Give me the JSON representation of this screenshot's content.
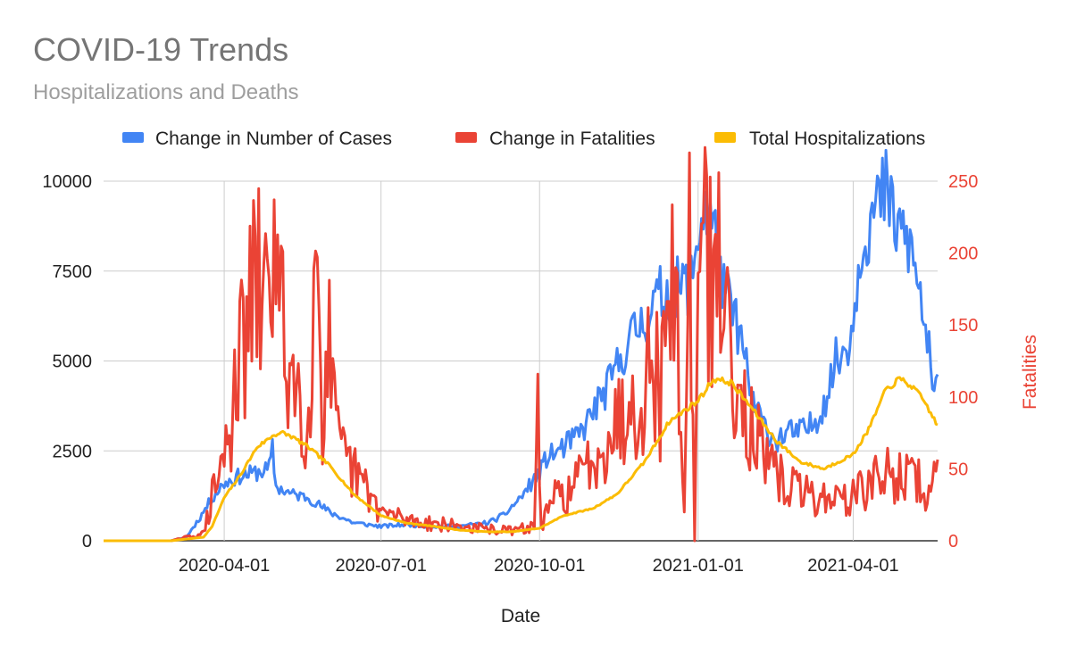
{
  "chart_data": {
    "type": "line",
    "title": "COVID-19 Trends",
    "subtitle": "Hospitalizations and Deaths",
    "xlabel": "Date",
    "ylabel": "",
    "y2label": "Fatalities",
    "x_start": "2020-01-22",
    "x_end": "2021-05-20",
    "x_ticks": [
      "2020-04-01",
      "2020-07-01",
      "2020-10-01",
      "2021-01-01",
      "2021-04-01"
    ],
    "ylim": [
      0,
      10000
    ],
    "y_ticks": [
      0,
      2500,
      5000,
      7500,
      10000
    ],
    "y2lim": [
      0,
      250
    ],
    "y2_ticks": [
      0,
      50,
      100,
      150,
      200,
      250
    ],
    "grid": true,
    "legend_position": "top",
    "colors": {
      "cases": "#4285f4",
      "fatalities": "#ea4335",
      "hospitalizations": "#fbbc04",
      "y2axis": "#ea4335"
    },
    "series": [
      {
        "name": "Change in Number of Cases",
        "axis": "left",
        "color": "#4285f4",
        "points": [
          [
            "2020-01-22",
            0
          ],
          [
            "2020-03-01",
            0
          ],
          [
            "2020-03-10",
            100
          ],
          [
            "2020-03-18",
            650
          ],
          [
            "2020-03-25",
            1200
          ],
          [
            "2020-04-01",
            1600
          ],
          [
            "2020-04-10",
            1800
          ],
          [
            "2020-04-20",
            1900
          ],
          [
            "2020-04-27",
            2000
          ],
          [
            "2020-04-29",
            2550
          ],
          [
            "2020-05-01",
            1500
          ],
          [
            "2020-05-10",
            1300
          ],
          [
            "2020-05-20",
            1200
          ],
          [
            "2020-06-01",
            800
          ],
          [
            "2020-06-15",
            500
          ],
          [
            "2020-07-01",
            400
          ],
          [
            "2020-07-15",
            450
          ],
          [
            "2020-08-01",
            400
          ],
          [
            "2020-08-15",
            400
          ],
          [
            "2020-09-01",
            500
          ],
          [
            "2020-09-10",
            700
          ],
          [
            "2020-09-20",
            1200
          ],
          [
            "2020-10-01",
            1900
          ],
          [
            "2020-10-05",
            2300
          ],
          [
            "2020-10-15",
            2600
          ],
          [
            "2020-10-25",
            3000
          ],
          [
            "2020-11-01",
            3600
          ],
          [
            "2020-11-10",
            4300
          ],
          [
            "2020-11-20",
            5400
          ],
          [
            "2020-12-01",
            6200
          ],
          [
            "2020-12-10",
            6800
          ],
          [
            "2020-12-20",
            7000
          ],
          [
            "2020-12-28",
            7200
          ],
          [
            "2021-01-01",
            8600
          ],
          [
            "2021-01-05",
            9300
          ],
          [
            "2021-01-10",
            8700
          ],
          [
            "2021-01-15",
            7000
          ],
          [
            "2021-01-20",
            6500
          ],
          [
            "2021-01-25",
            5800
          ],
          [
            "2021-02-01",
            4000
          ],
          [
            "2021-02-08",
            3200
          ],
          [
            "2021-02-15",
            2800
          ],
          [
            "2021-02-22",
            3000
          ],
          [
            "2021-03-01",
            3000
          ],
          [
            "2021-03-08",
            3200
          ],
          [
            "2021-03-15",
            3800
          ],
          [
            "2021-03-22",
            5000
          ],
          [
            "2021-03-26",
            5200
          ],
          [
            "2021-04-01",
            6000
          ],
          [
            "2021-04-05",
            8200
          ],
          [
            "2021-04-10",
            8800
          ],
          [
            "2021-04-15",
            9300
          ],
          [
            "2021-04-20",
            9700
          ],
          [
            "2021-04-25",
            8800
          ],
          [
            "2021-05-01",
            8500
          ],
          [
            "2021-05-05",
            8000
          ],
          [
            "2021-05-10",
            6800
          ],
          [
            "2021-05-15",
            5200
          ],
          [
            "2021-05-18",
            3800
          ],
          [
            "2021-05-20",
            4600
          ]
        ]
      },
      {
        "name": "Change in Fatalities",
        "axis": "right",
        "color": "#ea4335",
        "points": [
          [
            "2020-01-22",
            0
          ],
          [
            "2020-03-01",
            0
          ],
          [
            "2020-03-20",
            5
          ],
          [
            "2020-03-25",
            30
          ],
          [
            "2020-04-01",
            60
          ],
          [
            "2020-04-05",
            70
          ],
          [
            "2020-04-07",
            140
          ],
          [
            "2020-04-10",
            120
          ],
          [
            "2020-04-15",
            155
          ],
          [
            "2020-04-20",
            175
          ],
          [
            "2020-04-25",
            160
          ],
          [
            "2020-04-27",
            225
          ],
          [
            "2020-04-30",
            195
          ],
          [
            "2020-05-03",
            160
          ],
          [
            "2020-05-07",
            130
          ],
          [
            "2020-05-10",
            120
          ],
          [
            "2020-05-15",
            100
          ],
          [
            "2020-05-20",
            85
          ],
          [
            "2020-05-25",
            215
          ],
          [
            "2020-05-28",
            90
          ],
          [
            "2020-06-01",
            130
          ],
          [
            "2020-06-05",
            70
          ],
          [
            "2020-06-10",
            55
          ],
          [
            "2020-06-20",
            40
          ],
          [
            "2020-07-01",
            20
          ],
          [
            "2020-07-15",
            15
          ],
          [
            "2020-08-01",
            12
          ],
          [
            "2020-08-15",
            10
          ],
          [
            "2020-09-01",
            8
          ],
          [
            "2020-09-15",
            7
          ],
          [
            "2020-09-28",
            10
          ],
          [
            "2020-09-30",
            95
          ],
          [
            "2020-10-02",
            10
          ],
          [
            "2020-10-10",
            30
          ],
          [
            "2020-10-20",
            35
          ],
          [
            "2020-11-01",
            60
          ],
          [
            "2020-11-10",
            75
          ],
          [
            "2020-11-20",
            90
          ],
          [
            "2020-12-01",
            110
          ],
          [
            "2020-12-05",
            130
          ],
          [
            "2020-12-10",
            100
          ],
          [
            "2020-12-15",
            180
          ],
          [
            "2020-12-20",
            150
          ],
          [
            "2020-12-24",
            20
          ],
          [
            "2020-12-27",
            210
          ],
          [
            "2020-12-30",
            0
          ],
          [
            "2021-01-02",
            225
          ],
          [
            "2021-01-06",
            180
          ],
          [
            "2021-01-10",
            190
          ],
          [
            "2021-01-15",
            170
          ],
          [
            "2021-01-20",
            140
          ],
          [
            "2021-01-25",
            110
          ],
          [
            "2021-02-01",
            80
          ],
          [
            "2021-02-10",
            50
          ],
          [
            "2021-02-20",
            40
          ],
          [
            "2021-03-01",
            35
          ],
          [
            "2021-03-10",
            30
          ],
          [
            "2021-03-20",
            30
          ],
          [
            "2021-04-01",
            30
          ],
          [
            "2021-04-10",
            40
          ],
          [
            "2021-04-20",
            45
          ],
          [
            "2021-05-01",
            45
          ],
          [
            "2021-05-10",
            40
          ],
          [
            "2021-05-15",
            30
          ],
          [
            "2021-05-20",
            48
          ]
        ]
      },
      {
        "name": "Total Hospitalizations",
        "axis": "left",
        "color": "#fbbc04",
        "points": [
          [
            "2020-01-22",
            0
          ],
          [
            "2020-03-01",
            0
          ],
          [
            "2020-03-20",
            100
          ],
          [
            "2020-03-25",
            400
          ],
          [
            "2020-04-01",
            1200
          ],
          [
            "2020-04-10",
            1800
          ],
          [
            "2020-04-20",
            2600
          ],
          [
            "2020-04-30",
            2950
          ],
          [
            "2020-05-05",
            3000
          ],
          [
            "2020-05-10",
            2900
          ],
          [
            "2020-05-20",
            2600
          ],
          [
            "2020-06-01",
            2100
          ],
          [
            "2020-06-15",
            1300
          ],
          [
            "2020-07-01",
            700
          ],
          [
            "2020-07-15",
            500
          ],
          [
            "2020-08-01",
            400
          ],
          [
            "2020-08-15",
            300
          ],
          [
            "2020-09-01",
            250
          ],
          [
            "2020-09-15",
            250
          ],
          [
            "2020-10-01",
            350
          ],
          [
            "2020-10-15",
            700
          ],
          [
            "2020-11-01",
            900
          ],
          [
            "2020-11-15",
            1300
          ],
          [
            "2020-12-01",
            2200
          ],
          [
            "2020-12-15",
            3300
          ],
          [
            "2021-01-01",
            3900
          ],
          [
            "2021-01-10",
            4500
          ],
          [
            "2021-01-20",
            4400
          ],
          [
            "2021-02-01",
            3700
          ],
          [
            "2021-02-15",
            2800
          ],
          [
            "2021-03-01",
            2200
          ],
          [
            "2021-03-15",
            2000
          ],
          [
            "2021-04-01",
            2400
          ],
          [
            "2021-04-10",
            3100
          ],
          [
            "2021-04-20",
            4200
          ],
          [
            "2021-04-28",
            4500
          ],
          [
            "2021-05-05",
            4300
          ],
          [
            "2021-05-12",
            3900
          ],
          [
            "2021-05-20",
            3200
          ]
        ]
      }
    ]
  }
}
